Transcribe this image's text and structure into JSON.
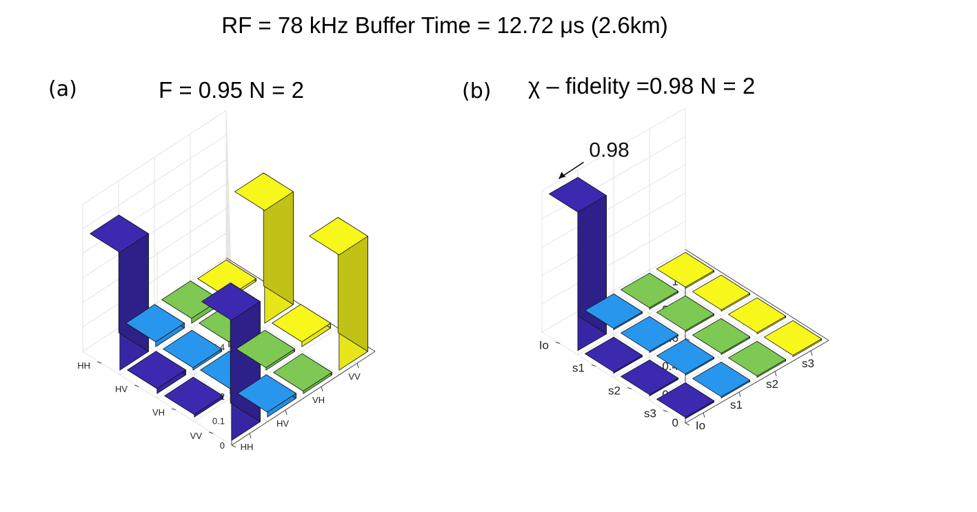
{
  "title": "RF = 78 kHz Buffer Time = 12.72 μs (2.6km)",
  "panels": [
    {
      "label": "(a)",
      "subtitle": "F = 0.95  N = 2"
    },
    {
      "label": "(b)",
      "subtitle": "χ – fidelity =0.98    N = 2"
    }
  ],
  "colors": {
    "blue": "#3b29b0",
    "lightblue": "#2996ee",
    "green": "#7ec854",
    "yellow": "#f7f71c"
  },
  "chart_data": [
    {
      "type": "bar3d",
      "title": "F = 0.95  N = 2",
      "row_labels": [
        "HH",
        "HV",
        "VH",
        "VV"
      ],
      "col_labels": [
        "HH",
        "HV",
        "VH",
        "VV"
      ],
      "zlim": [
        0,
        0.6
      ],
      "zticks": [
        "0",
        "0.1",
        "0.2",
        "0.3",
        "0.4",
        "0.5",
        "0.6"
      ],
      "zvalues": [
        0,
        0.1,
        0.2,
        0.3,
        0.4,
        0.5,
        0.6
      ],
      "values": [
        [
          0.48,
          0.02,
          0.02,
          0.01
        ],
        [
          0.02,
          0.01,
          0.02,
          0.46
        ],
        [
          0.01,
          0.02,
          0.01,
          0.02
        ],
        [
          0.49,
          0.02,
          0.01,
          0.47
        ]
      ]
    },
    {
      "type": "bar3d",
      "title": "χ – fidelity =0.98",
      "annotation": "0.98",
      "row_labels": [
        "Io",
        "s1",
        "s2",
        "s3"
      ],
      "col_labels": [
        "Io",
        "s1",
        "s2",
        "s3"
      ],
      "zlim": [
        0,
        1
      ],
      "zticks": [
        "0",
        "0.2",
        "0.4",
        "0.6",
        "0.8",
        "1"
      ],
      "zvalues": [
        0,
        0.2,
        0.4,
        0.6,
        0.8,
        1
      ],
      "values": [
        [
          0.98,
          0.01,
          0.01,
          0.01
        ],
        [
          0.01,
          0.01,
          0.01,
          0.01
        ],
        [
          0.01,
          0.01,
          0.01,
          0.01
        ],
        [
          0.01,
          0.01,
          0.01,
          0.01
        ]
      ]
    }
  ]
}
